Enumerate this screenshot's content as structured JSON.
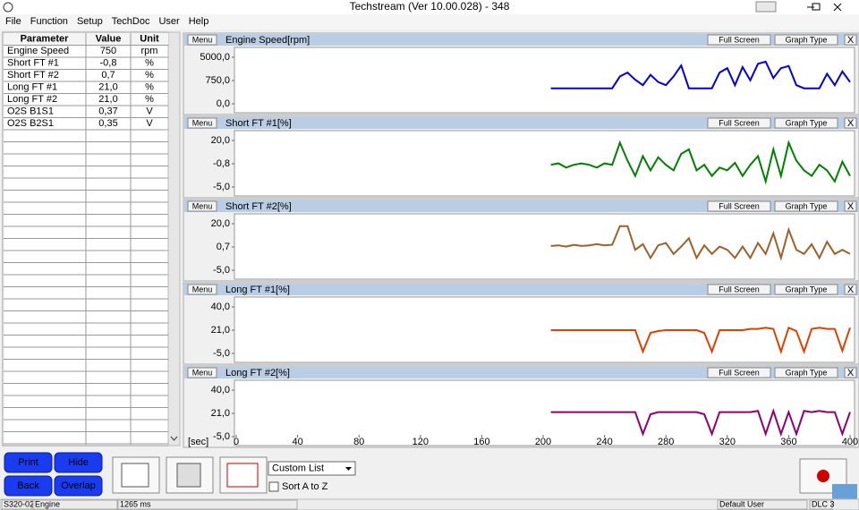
{
  "window": {
    "title": "Techstream (Ver 10.00.028) - 348"
  },
  "menu": [
    "File",
    "Function",
    "Setup",
    "TechDoc",
    "User",
    "Help"
  ],
  "parameters": {
    "headers": [
      "Parameter",
      "Value",
      "Unit"
    ],
    "rows": [
      {
        "name": "Engine Speed",
        "value": 750,
        "unit": "rpm",
        "color": "#1a1acc"
      },
      {
        "name": "Short FT #1",
        "value": "-0,8",
        "unit": "%",
        "color": "#1a8a1a"
      },
      {
        "name": "Short FT #2",
        "value": "0,7",
        "unit": "%",
        "color": "#b07030"
      },
      {
        "name": "Long FT #1",
        "value": "21,0",
        "unit": "%",
        "color": "#cc3010"
      },
      {
        "name": "Long FT #2",
        "value": "21,0",
        "unit": "%",
        "color": "#b02040"
      },
      {
        "name": "O2S B1S1",
        "value": "0,37",
        "unit": "V",
        "color": "#000000"
      },
      {
        "name": "O2S B2S1",
        "value": "0,35",
        "unit": "V",
        "color": "#000000"
      }
    ]
  },
  "graph_buttons": {
    "menu": "Menu",
    "full_screen": "Full Screen",
    "graph_type": "Graph Type",
    "close": "X"
  },
  "time": {
    "label": "[sec]",
    "xlim": [
      0,
      400
    ],
    "xticks": [
      0,
      40,
      80,
      120,
      160,
      200,
      240,
      280,
      320,
      360,
      400
    ],
    "x": [
      205,
      210,
      215,
      220,
      225,
      230,
      235,
      240,
      245,
      250,
      255,
      260,
      265,
      270,
      275,
      280,
      285,
      290,
      295,
      300,
      305,
      310,
      315,
      320,
      325,
      330,
      335,
      340,
      345,
      350,
      355,
      360,
      365,
      370,
      375,
      380,
      385,
      390,
      395,
      400
    ]
  },
  "graphs": [
    {
      "type": "line",
      "title": "Engine Speed[rpm]",
      "color": "#0000e0",
      "ylim": [
        0,
        5000
      ],
      "yticks": [
        {
          "value": 0,
          "label": "0,0"
        },
        {
          "value": 750,
          "label": "750,0"
        },
        {
          "value": 5000,
          "label": "5000,0"
        }
      ],
      "values": [
        500,
        500,
        500,
        500,
        500,
        500,
        500,
        500,
        500,
        1500,
        2200,
        900,
        600,
        1800,
        700,
        600,
        1500,
        3500,
        500,
        500,
        500,
        500,
        2200,
        3000,
        600,
        3200,
        800,
        3800,
        4200,
        1200,
        3000,
        3400,
        600,
        500,
        500,
        500,
        2000,
        600,
        2400,
        700
      ]
    },
    {
      "type": "line",
      "title": "Short FT #1[%]",
      "color": "#008000",
      "ylim": [
        -5,
        20
      ],
      "yticks": [
        {
          "value": -5,
          "label": "-5,0"
        },
        {
          "value": -0.8,
          "label": "-0,8"
        },
        {
          "value": 20,
          "label": "20,0"
        }
      ],
      "values": [
        -1,
        -0.5,
        -1.5,
        -1,
        -0.5,
        -1,
        -1.5,
        -0.5,
        -1,
        18,
        2,
        -3,
        6,
        -2,
        5,
        -1,
        -2,
        8,
        12,
        -2,
        -1,
        -3,
        -1.5,
        -2,
        0,
        -3,
        -1,
        6,
        -4,
        12,
        -3,
        18,
        2,
        -2,
        -3,
        -1,
        -2,
        -4,
        1,
        -3
      ]
    },
    {
      "type": "line",
      "title": "Short FT #2[%]",
      "color": "#a0602a",
      "ylim": [
        -5,
        20
      ],
      "yticks": [
        {
          "value": -5,
          "label": "-5,0"
        },
        {
          "value": 0.7,
          "label": "0,7"
        },
        {
          "value": 20,
          "label": "20,0"
        }
      ],
      "values": [
        1.5,
        2,
        1,
        2.5,
        1.5,
        2,
        3,
        2,
        2.5,
        18,
        18,
        0,
        3,
        -2,
        2,
        4,
        -1,
        1,
        8,
        -2,
        2,
        -1,
        1,
        0,
        -2,
        1,
        -2,
        4,
        -1,
        12,
        -2,
        15,
        0,
        -1,
        3,
        -2,
        5,
        -1,
        0,
        -1
      ]
    },
    {
      "type": "line",
      "title": "Long FT #1[%]",
      "color": "#e04000",
      "ylim": [
        -5,
        40
      ],
      "yticks": [
        {
          "value": -5,
          "label": "-5,0"
        },
        {
          "value": 21,
          "label": "21,0"
        },
        {
          "value": 40,
          "label": "40,0"
        }
      ],
      "values": [
        21,
        21,
        21,
        21,
        21,
        21,
        21,
        21,
        21,
        21,
        21,
        21,
        -3,
        18,
        20,
        21,
        21,
        21,
        21,
        21,
        18,
        -3,
        21,
        21,
        21,
        21,
        22,
        22,
        23,
        22,
        -3,
        23,
        20,
        -3,
        22,
        23,
        22,
        22,
        -2,
        23
      ]
    },
    {
      "type": "line",
      "title": "Long FT #2[%]",
      "color": "#900070",
      "ylim": [
        -5,
        40
      ],
      "yticks": [
        {
          "value": -5,
          "label": "-5,0"
        },
        {
          "value": 21,
          "label": "21,0"
        },
        {
          "value": 40,
          "label": "40,0"
        }
      ],
      "values": [
        22,
        22,
        22,
        22,
        22,
        22,
        22,
        22,
        22,
        22,
        22,
        22,
        -2,
        20,
        22,
        22,
        22,
        22,
        22,
        22,
        20,
        -2,
        22,
        22,
        22,
        22,
        22,
        23,
        -2,
        23,
        -2,
        22,
        -2,
        23,
        22,
        23,
        22,
        22,
        -2,
        22
      ]
    }
  ],
  "buttons": [
    "Print",
    "Hide",
    "Back",
    "Overlap"
  ],
  "list_select": "Custom List",
  "sort_option": "Sort A to Z",
  "status": [
    "S320-02",
    "Engine",
    "1265 ms",
    "Default User",
    "DLC 3"
  ]
}
